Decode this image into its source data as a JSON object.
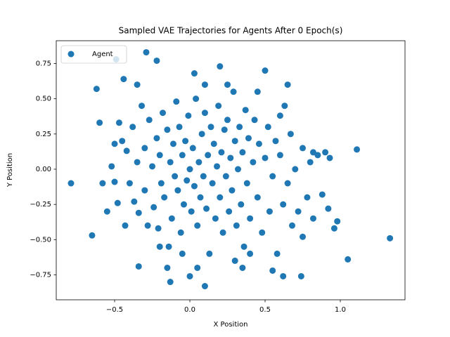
{
  "chart_data": {
    "type": "scatter",
    "title": "Sampled VAE Trajectories for Agents After 0 Epoch(s)",
    "xlabel": "X Position",
    "ylabel": "Y Position",
    "xlim": [
      -0.888,
      1.43
    ],
    "ylim": [
      -0.927,
      0.912
    ],
    "xticks": [
      {
        "value": -0.5,
        "label": "−0.5"
      },
      {
        "value": 0,
        "label": "0.0"
      },
      {
        "value": 0.5,
        "label": "0.5"
      },
      {
        "value": 1,
        "label": "1.0"
      }
    ],
    "yticks": [
      {
        "value": -0.75,
        "label": "−0.75"
      },
      {
        "value": -0.5,
        "label": "−0.50"
      },
      {
        "value": -0.25,
        "label": "−0.25"
      },
      {
        "value": 0,
        "label": "0.00"
      },
      {
        "value": 0.25,
        "label": "0.25"
      },
      {
        "value": 0.5,
        "label": "0.50"
      },
      {
        "value": 0.75,
        "label": "0.75"
      }
    ],
    "grid": false,
    "legend": "upper-left",
    "series": [
      {
        "name": "Agent",
        "color": "#1f77b4",
        "x": [
          -0.79,
          -0.65,
          1.33,
          1.11,
          1.05,
          -0.49,
          0.2,
          0.5,
          -0.29,
          0.1,
          0.74,
          0.62,
          -0.6,
          -0.62,
          0.98,
          0.96,
          -0.44,
          0.03,
          -0.22,
          -0.13,
          -0.34,
          0.0,
          -0.55,
          -0.52,
          -0.5,
          -0.48,
          -0.45,
          -0.43,
          -0.42,
          -0.4,
          -0.38,
          -0.37,
          -0.35,
          -0.34,
          -0.32,
          -0.3,
          -0.3,
          -0.28,
          -0.27,
          -0.25,
          -0.24,
          -0.22,
          -0.21,
          -0.2,
          -0.19,
          -0.18,
          -0.17,
          -0.15,
          -0.14,
          -0.13,
          -0.12,
          -0.11,
          -0.1,
          -0.09,
          -0.08,
          -0.07,
          -0.06,
          -0.05,
          -0.04,
          -0.03,
          -0.02,
          -0.01,
          0.0,
          0.01,
          0.02,
          0.03,
          0.04,
          0.05,
          0.06,
          0.07,
          0.08,
          0.09,
          0.1,
          0.11,
          0.12,
          0.13,
          0.14,
          0.15,
          0.16,
          0.17,
          0.18,
          0.19,
          0.2,
          0.21,
          0.22,
          0.23,
          0.24,
          0.25,
          0.26,
          0.27,
          0.28,
          0.29,
          0.3,
          0.31,
          0.32,
          0.33,
          0.34,
          0.35,
          0.36,
          0.37,
          0.38,
          0.39,
          0.4,
          0.42,
          0.43,
          0.45,
          0.46,
          0.48,
          0.5,
          0.52,
          0.53,
          0.55,
          0.57,
          0.58,
          0.6,
          0.62,
          0.63,
          0.65,
          0.67,
          0.68,
          0.7,
          0.72,
          0.75,
          0.78,
          0.8,
          0.82,
          0.85,
          0.88,
          0.9,
          0.93,
          -0.58,
          -0.47,
          0.65,
          0.55,
          -0.15,
          0.3,
          0.45,
          -0.35,
          0.25,
          0.1,
          -0.05,
          0.4,
          0.92,
          0.82,
          0.75,
          -0.5,
          0.35,
          0.05,
          -0.2,
          0.6
        ],
        "values": [
          -0.1,
          -0.47,
          -0.49,
          0.14,
          -0.64,
          0.78,
          0.73,
          0.7,
          0.83,
          -0.83,
          -0.76,
          -0.76,
          0.33,
          0.57,
          -0.37,
          -0.42,
          0.64,
          0.68,
          0.77,
          -0.8,
          -0.69,
          -0.76,
          -0.3,
          0.02,
          -0.09,
          -0.24,
          0.2,
          -0.4,
          0.13,
          -0.1,
          0.3,
          -0.23,
          0.05,
          -0.31,
          0.45,
          0.15,
          -0.15,
          -0.4,
          0.35,
          0.02,
          -0.27,
          0.22,
          -0.42,
          0.1,
          -0.1,
          0.4,
          -0.2,
          0.28,
          -0.55,
          0.05,
          -0.35,
          0.18,
          -0.05,
          0.48,
          -0.15,
          0.3,
          -0.45,
          0.1,
          -0.25,
          0.2,
          -0.08,
          0.38,
          0.0,
          -0.3,
          0.15,
          -0.12,
          0.5,
          -0.4,
          0.05,
          -0.2,
          0.25,
          -0.05,
          0.4,
          -0.28,
          0.1,
          -0.6,
          0.3,
          -0.1,
          0.18,
          -0.35,
          0.02,
          0.45,
          -0.2,
          0.12,
          -0.45,
          0.28,
          -0.05,
          0.35,
          -0.3,
          0.08,
          -0.15,
          0.55,
          0.2,
          -0.4,
          0.0,
          0.3,
          -0.25,
          0.12,
          -0.55,
          0.42,
          -0.1,
          0.22,
          -0.35,
          0.05,
          0.35,
          -0.2,
          0.18,
          -0.45,
          0.08,
          0.3,
          -0.3,
          -0.05,
          0.2,
          -0.6,
          0.1,
          -0.25,
          0.45,
          -0.1,
          0.25,
          -0.4,
          0.0,
          -0.3,
          0.15,
          -0.2,
          0.05,
          -0.35,
          0.1,
          -0.18,
          0.12,
          0.08,
          -0.1,
          0.33,
          0.6,
          -0.72,
          -0.7,
          -0.65,
          0.55,
          0.6,
          0.6,
          0.6,
          -0.6,
          -0.6,
          -0.28,
          0.12,
          -0.48,
          0.18,
          -0.7,
          -0.7,
          -0.55,
          0.38
        ]
      }
    ]
  }
}
